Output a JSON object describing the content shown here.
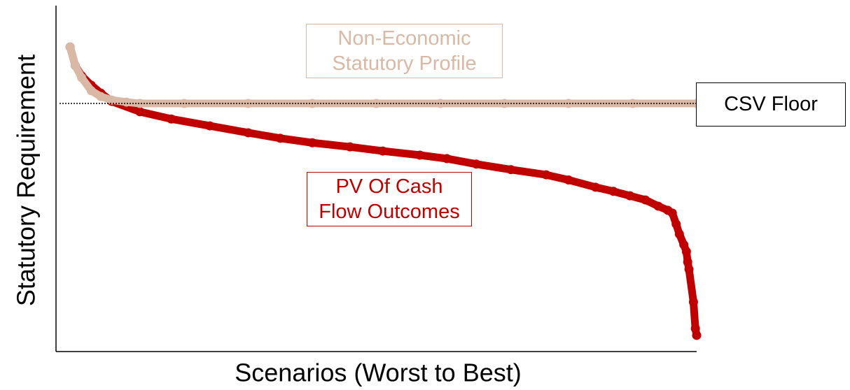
{
  "chart_data": {
    "type": "scatter",
    "x_label": "Scenarios (Worst to Best)",
    "y_label": "Statutory Requirement",
    "xlim": [
      0,
      100
    ],
    "ylim": [
      0,
      100
    ],
    "series": [
      {
        "name": "PV Of Cash\nFlow Outcomes",
        "color": "#c00000",
        "x": [
          2.2,
          3,
          4,
          5.5,
          7,
          8.7,
          13.1,
          18,
          24,
          30,
          35,
          40,
          45.9,
          51,
          56.8,
          61,
          65.6,
          71,
          76.5,
          80,
          84.2,
          87,
          89.6,
          92,
          94,
          95.5,
          96.2,
          96.8,
          97.3,
          98,
          98.4,
          98.6,
          98.8,
          99.5,
          99.8,
          100
        ],
        "values": [
          88.4,
          83,
          80,
          77.3,
          75,
          72.6,
          69.6,
          67.5,
          65.5,
          63.5,
          61.9,
          60.6,
          59.4,
          58.2,
          57,
          56,
          54.4,
          52.8,
          51.3,
          49.8,
          47.7,
          46.5,
          45.2,
          44,
          42.2,
          41,
          40.2,
          37,
          34.1,
          31,
          29,
          26,
          23.9,
          14.4,
          6.7,
          4.7
        ]
      },
      {
        "name": "Non-Economic\nStatutory Profile",
        "color": "#d9b8a6",
        "x": [
          2.2,
          3,
          4,
          5.5,
          7,
          8.7,
          11,
          13.1,
          20,
          30,
          40,
          50,
          60,
          70,
          80,
          90,
          100
        ],
        "values": [
          88.4,
          83,
          79.5,
          75.7,
          74,
          73,
          72.4,
          72,
          72,
          72,
          72,
          72,
          72,
          72,
          72,
          72,
          72
        ]
      }
    ],
    "reference_line": {
      "label": "CSV Floor",
      "value": 72
    }
  }
}
